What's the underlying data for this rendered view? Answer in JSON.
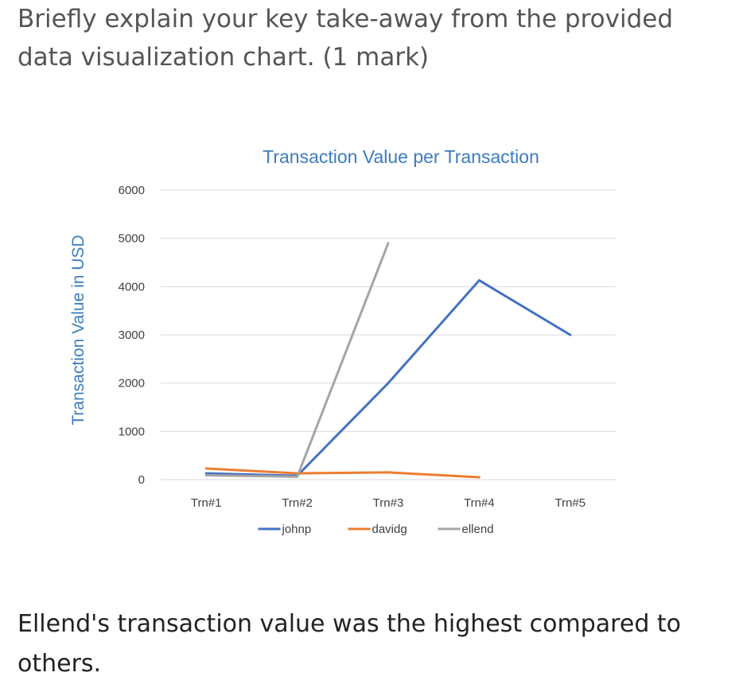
{
  "question": {
    "text": "Briefly explain your key take-away from the provided data visualization chart. (1 mark)"
  },
  "answer": {
    "text": "Ellend's transaction value was the highest compared to others."
  },
  "colors": {
    "title": "#3d7cc1",
    "axis_text": "#404040",
    "grid": "#d9d9d9",
    "johnp": "#4472c4",
    "davidg": "#ed7d31",
    "ellend": "#a5a5a5"
  },
  "chart_data": {
    "type": "line",
    "title": "Transaction Value per Transaction",
    "xlabel": "",
    "ylabel": "Transaction Value in USD",
    "categories": [
      "Trn#1",
      "Trn#2",
      "Trn#3",
      "Trn#4",
      "Trn#5"
    ],
    "ylim": [
      0,
      6000
    ],
    "yticks": [
      0,
      1000,
      2000,
      3000,
      4000,
      5000,
      6000
    ],
    "grid": true,
    "legend_position": "bottom",
    "series": [
      {
        "name": "johnp",
        "color": "#4472c4",
        "values": [
          130,
          80,
          2000,
          4130,
          3000
        ]
      },
      {
        "name": "davidg",
        "color": "#ed7d31",
        "values": [
          230,
          130,
          150,
          50,
          null
        ]
      },
      {
        "name": "ellend",
        "color": "#a5a5a5",
        "values": [
          90,
          60,
          4900,
          null,
          null
        ]
      }
    ]
  }
}
